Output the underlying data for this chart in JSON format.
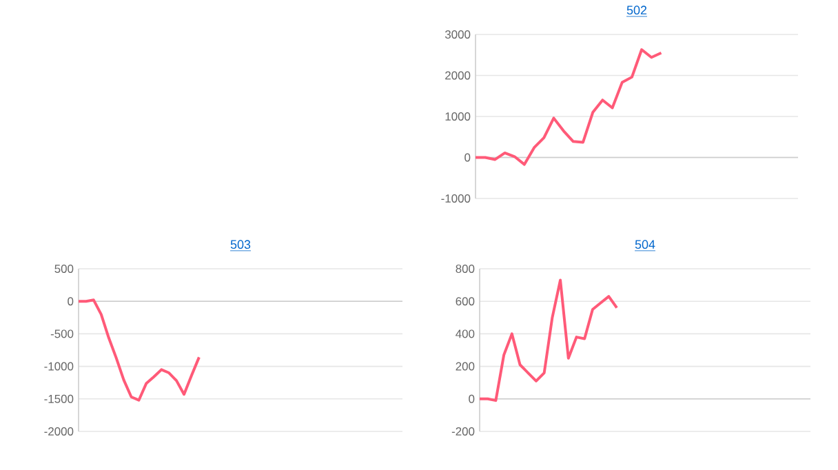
{
  "chart_data": [
    {
      "type": "line",
      "title": "502",
      "categories": [
        null,
        null,
        null,
        null,
        null,
        null,
        null,
        null,
        null,
        null,
        null,
        null,
        null,
        null,
        null,
        null,
        null,
        null,
        null,
        null,
        null,
        null,
        null,
        null,
        null,
        null,
        null,
        null,
        null,
        null,
        null,
        null,
        null,
        null
      ],
      "series": [
        {
          "color": "#ff5a78",
          "values": [
            0,
            0,
            -50,
            110,
            20,
            -170,
            240,
            480,
            960,
            650,
            390,
            370,
            1100,
            1400,
            1210,
            1830,
            1960,
            2630,
            2440,
            2550,
            null,
            null,
            null,
            null,
            null,
            null,
            null,
            null,
            null,
            null,
            null,
            null,
            null,
            null
          ]
        }
      ],
      "ylim": [
        -1000,
        3000
      ],
      "yticks": [
        -1000,
        0,
        1000,
        2000,
        3000
      ],
      "grid": "y",
      "marker": "none",
      "line_style": "solid"
    },
    {
      "type": "line",
      "title": "503",
      "categories": [
        null,
        null,
        null,
        null,
        null,
        null,
        null,
        null,
        null,
        null,
        null,
        null,
        null,
        null,
        null,
        null,
        null,
        null,
        null,
        null,
        null,
        null,
        null,
        null,
        null,
        null,
        null,
        null,
        null,
        null,
        null,
        null,
        null,
        null,
        null,
        null,
        null,
        null,
        null,
        null,
        null,
        null,
        null,
        null
      ],
      "series": [
        {
          "color": "#ff5a78",
          "values": [
            0,
            0,
            20,
            -200,
            -560,
            -870,
            -1210,
            -1470,
            -1520,
            -1260,
            -1160,
            -1050,
            -1100,
            -1220,
            -1430,
            -1140,
            -860,
            null,
            null,
            null,
            null,
            null,
            null,
            null,
            null,
            null,
            null,
            null,
            null,
            null,
            null,
            null,
            null,
            null,
            null,
            null,
            null,
            null,
            null,
            null,
            null,
            null,
            null,
            null
          ]
        }
      ],
      "ylim": [
        -2000,
        500
      ],
      "yticks": [
        -2000,
        -1500,
        -1000,
        -500,
        0,
        500
      ],
      "grid": "y",
      "marker": "none",
      "line_style": "solid"
    },
    {
      "type": "line",
      "title": "504",
      "categories": [
        null,
        null,
        null,
        null,
        null,
        null,
        null,
        null,
        null,
        null,
        null,
        null,
        null,
        null,
        null,
        null,
        null,
        null,
        null,
        null,
        null,
        null,
        null,
        null,
        null,
        null,
        null,
        null,
        null,
        null,
        null,
        null,
        null,
        null,
        null,
        null,
        null,
        null,
        null,
        null,
        null,
        null
      ],
      "series": [
        {
          "color": "#ff5a78",
          "values": [
            0,
            0,
            -10,
            270,
            400,
            210,
            160,
            110,
            160,
            500,
            730,
            250,
            380,
            370,
            550,
            590,
            630,
            560,
            null,
            null,
            null,
            null,
            null,
            null,
            null,
            null,
            null,
            null,
            null,
            null,
            null,
            null,
            null,
            null,
            null,
            null,
            null,
            null,
            null,
            null,
            null,
            null
          ]
        }
      ],
      "ylim": [
        -200,
        800
      ],
      "yticks": [
        -200,
        0,
        200,
        400,
        600,
        800
      ],
      "grid": "y",
      "marker": "none",
      "line_style": "solid"
    }
  ]
}
